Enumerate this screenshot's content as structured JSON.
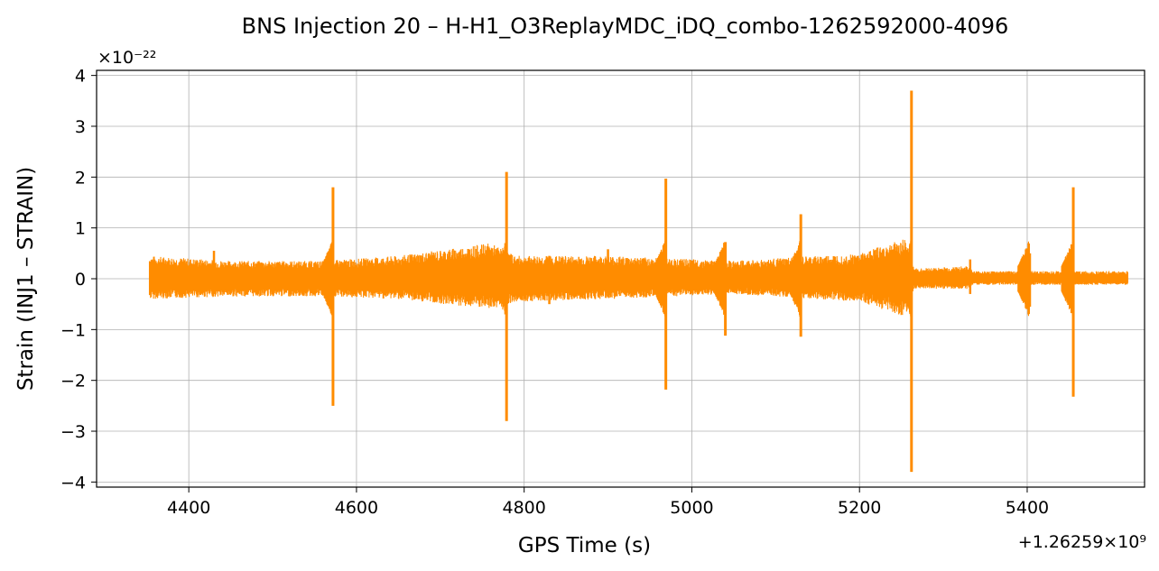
{
  "chart_data": {
    "type": "line",
    "title": "BNS Injection 20 – H-H1_O3ReplayMDC_iDQ_combo-1262592000-4096",
    "xlabel": "GPS Time (s)",
    "ylabel": "Strain (INJ1 – STRAIN)",
    "x_offset_label": "+1.26259×10⁹",
    "y_scale_label": "×10⁻²²",
    "xlim": [
      4290,
      5540
    ],
    "ylim": [
      -4.1,
      4.1
    ],
    "x_ticks": [
      4400,
      4600,
      4800,
      5000,
      5200,
      5400
    ],
    "x_tick_labels": [
      "4400",
      "4600",
      "4800",
      "5000",
      "5200",
      "5400"
    ],
    "y_ticks": [
      -4,
      -3,
      -2,
      -1,
      0,
      1,
      2,
      3,
      4
    ],
    "y_tick_labels": [
      "−4",
      "−3",
      "−2",
      "−1",
      "0",
      "1",
      "2",
      "3",
      "4"
    ],
    "grid": true,
    "series": [
      {
        "color": "#ff8c00",
        "x_range": [
          4353,
          5520
        ],
        "envelope": [
          {
            "x": 4353,
            "low": -0.4,
            "high": 0.45
          },
          {
            "x": 4450,
            "low": -0.35,
            "high": 0.35
          },
          {
            "x": 4560,
            "low": -0.35,
            "high": 0.35
          },
          {
            "x": 4650,
            "low": -0.4,
            "high": 0.45
          },
          {
            "x": 4760,
            "low": -0.6,
            "high": 0.7
          },
          {
            "x": 4790,
            "low": -0.45,
            "high": 0.45
          },
          {
            "x": 4900,
            "low": -0.4,
            "high": 0.45
          },
          {
            "x": 5050,
            "low": -0.3,
            "high": 0.35
          },
          {
            "x": 5200,
            "low": -0.45,
            "high": 0.5
          },
          {
            "x": 5255,
            "low": -0.75,
            "high": 0.8
          },
          {
            "x": 5265,
            "low": -0.2,
            "high": 0.2
          },
          {
            "x": 5330,
            "low": -0.2,
            "high": 0.25
          },
          {
            "x": 5335,
            "low": -0.12,
            "high": 0.15
          },
          {
            "x": 5520,
            "low": -0.12,
            "high": 0.15
          }
        ],
        "spikes": [
          {
            "x": 4572,
            "high": 1.8,
            "low": -2.5
          },
          {
            "x": 4779,
            "high": 2.1,
            "low": -2.8
          },
          {
            "x": 4969,
            "high": 1.97,
            "low": -2.18
          },
          {
            "x": 5040,
            "high": 0.72,
            "low": -1.12
          },
          {
            "x": 5130,
            "high": 1.27,
            "low": -1.14
          },
          {
            "x": 5262,
            "high": 3.7,
            "low": -3.8
          },
          {
            "x": 5403,
            "high": 0.5,
            "low": -0.55
          },
          {
            "x": 5455,
            "high": 1.8,
            "low": -2.32
          }
        ],
        "minor_bursts": [
          {
            "x": 4430,
            "high": 0.55,
            "low": -0.3
          },
          {
            "x": 4830,
            "high": 0.45,
            "low": -0.5
          },
          {
            "x": 4900,
            "high": 0.58,
            "low": -0.35
          },
          {
            "x": 5332,
            "high": 0.38,
            "low": -0.3
          }
        ]
      }
    ]
  }
}
